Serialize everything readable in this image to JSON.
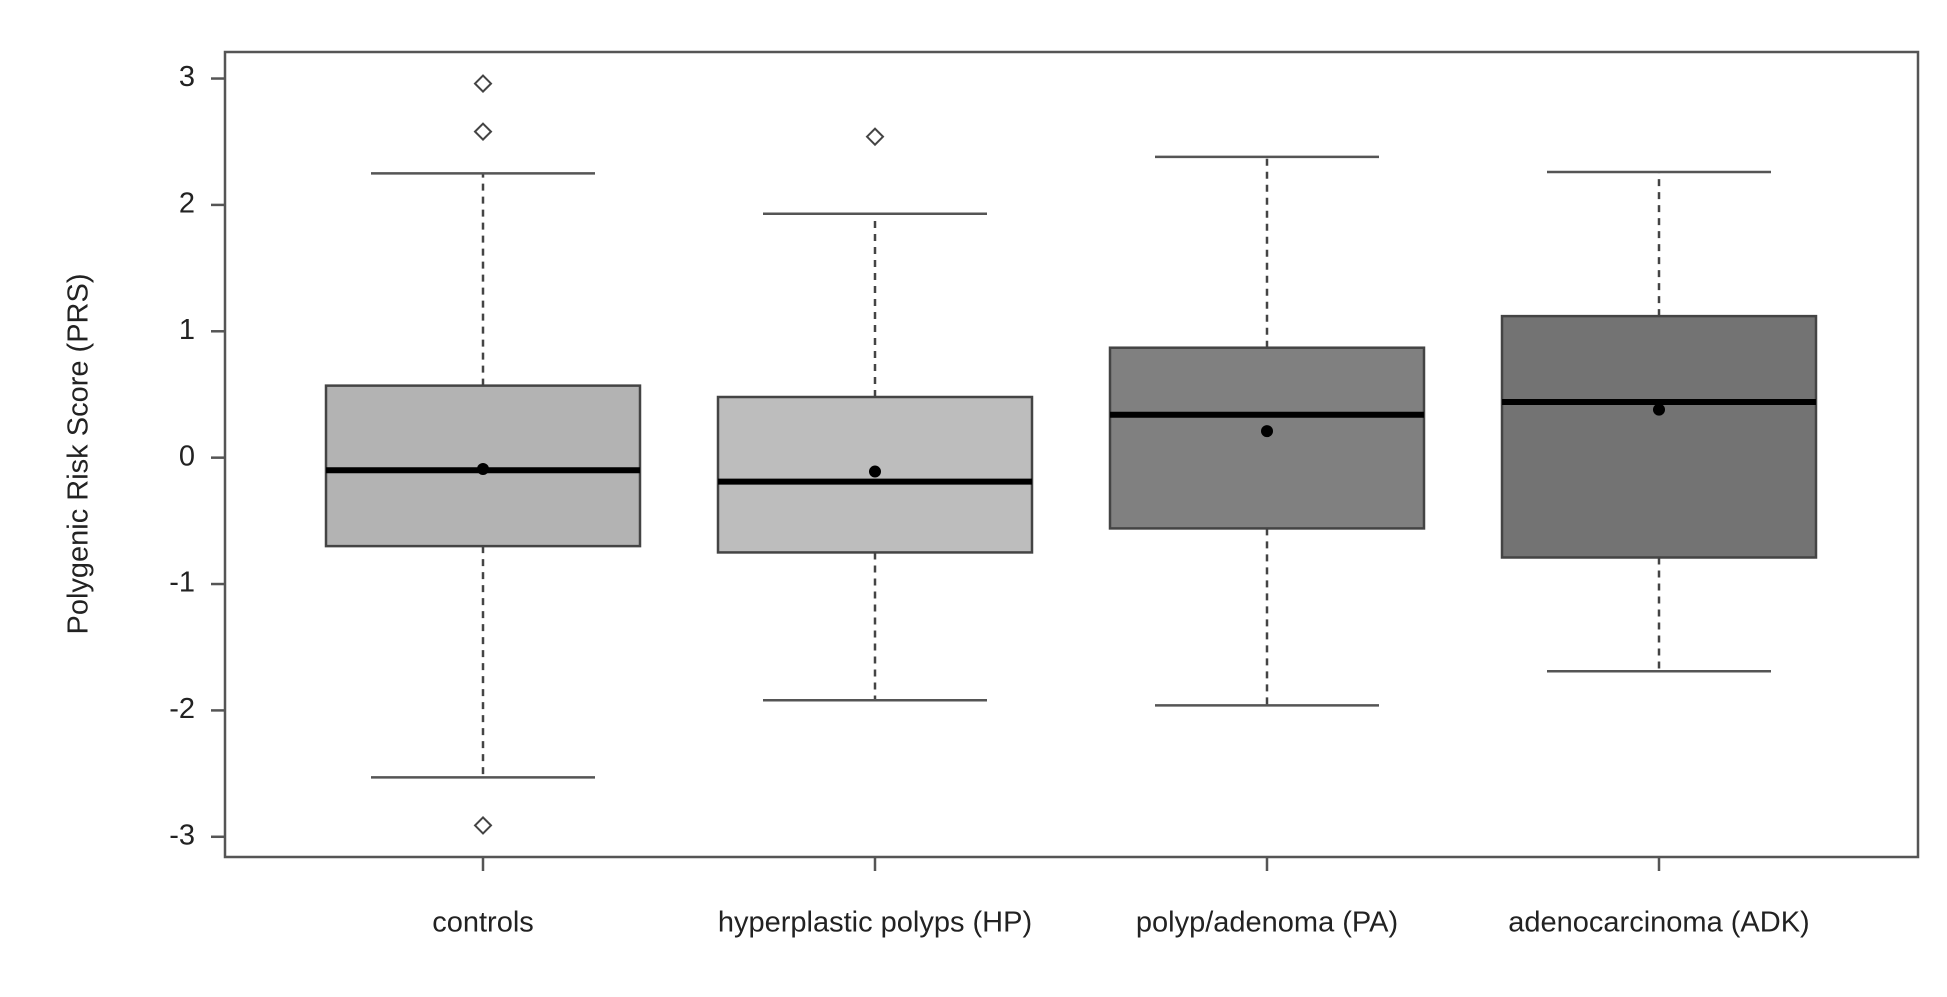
{
  "chart_data": {
    "type": "boxplot",
    "y_label": "Polygenic Risk Score (PRS)",
    "categories": [
      "controls",
      "hyperplastic polyps (HP)",
      "polyp/adenoma (PA)",
      "adenocarcinoma (ADK)"
    ],
    "colors": [
      "#b3b3b3",
      "#bdbdbd",
      "#808080",
      "#737373"
    ],
    "boxes": [
      {
        "whislo": -2.53,
        "q1": -0.7,
        "median": -0.1,
        "q3": 0.57,
        "whishi": 2.25,
        "mean": -0.09,
        "fliers": [
          2.96,
          2.58,
          -2.91
        ]
      },
      {
        "whislo": -1.92,
        "q1": -0.75,
        "median": -0.19,
        "q3": 0.48,
        "whishi": 1.93,
        "mean": -0.11,
        "fliers": [
          2.54
        ]
      },
      {
        "whislo": -1.96,
        "q1": -0.56,
        "median": 0.34,
        "q3": 0.87,
        "whishi": 2.38,
        "mean": 0.21,
        "fliers": []
      },
      {
        "whislo": -1.69,
        "q1": -0.79,
        "median": 0.44,
        "q3": 1.12,
        "whishi": 2.26,
        "mean": 0.38,
        "fliers": []
      }
    ],
    "ylim": [
      -3.16,
      3.21
    ],
    "yticks": [
      -3,
      -2,
      -1,
      0,
      1,
      2,
      3
    ]
  }
}
